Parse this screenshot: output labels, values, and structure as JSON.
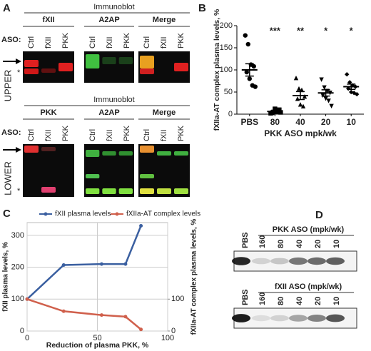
{
  "panel_a": {
    "label": "A",
    "upper": {
      "title": "Immunoblot",
      "headers": [
        "fXII",
        "A2AP",
        "Merge"
      ],
      "aso": "ASO:",
      "lanes": [
        "Ctrl",
        "fXII",
        "PKK"
      ],
      "side": "UPPER",
      "marker": "*"
    },
    "lower": {
      "title": "Immunoblot",
      "headers": [
        "PKK",
        "A2AP",
        "Merge"
      ],
      "aso": "ASO:",
      "lanes": [
        "Ctrl",
        "fXII",
        "PKK"
      ],
      "side": "LOWER",
      "marker": "*"
    }
  },
  "panel_d": {
    "label": "D",
    "blots": [
      {
        "control": "PBS",
        "header": "PKK ASO (mpk/wk)",
        "lanes": [
          "160",
          "80",
          "40",
          "20",
          "10"
        ]
      },
      {
        "control": "PBS",
        "header": "fXII ASO (mpk/wk)",
        "lanes": [
          "160",
          "80",
          "40",
          "20",
          "10"
        ]
      }
    ]
  },
  "chart_data": [
    {
      "type": "dot",
      "panel": "B",
      "ylabel": "fXIIa-AT complex plasma levels, %",
      "xlabel": "PKK ASO mpk/wk",
      "categories": [
        "PBS",
        "80",
        "40",
        "20",
        "10"
      ],
      "values": [
        100,
        6,
        42,
        48,
        62
      ],
      "errors": [
        14,
        2,
        9,
        7,
        6
      ],
      "points": [
        [
          178,
          158,
          112,
          108,
          95,
          80,
          65,
          62
        ],
        [
          2,
          5,
          8,
          10,
          3,
          12,
          6,
          4
        ],
        [
          82,
          58,
          55,
          40,
          35,
          22,
          18
        ],
        [
          78,
          60,
          52,
          48,
          42,
          35,
          30,
          18
        ],
        [
          90,
          72,
          65,
          62,
          58,
          50,
          48,
          45
        ]
      ],
      "markers": [
        "circle",
        "square",
        "triangle-up",
        "triangle-down",
        "diamond"
      ],
      "annotations": [
        null,
        "***",
        "**",
        "*",
        "*"
      ],
      "color": "#000000",
      "ylim": [
        0,
        200
      ],
      "yticks": [
        0,
        50,
        100,
        150,
        200
      ]
    },
    {
      "type": "line",
      "panel": "C",
      "xlabel": "Reduction of plasma PKK, %",
      "ylabel": "fXII plasma levels, %",
      "y2label": "fXIIa-AT complex plasma levels, %",
      "x": [
        0,
        26,
        53,
        70,
        81
      ],
      "xlim": [
        0,
        100
      ],
      "xticks": [
        0,
        50,
        100
      ],
      "ylim": [
        0,
        340
      ],
      "yticks": [
        0,
        100,
        200,
        300
      ],
      "y2lim": [
        0,
        340
      ],
      "y2ticks": [
        0,
        100
      ],
      "grid": true,
      "series": [
        {
          "name": "fXII plasma levels",
          "color": "#3a5fa0",
          "values": [
            100,
            207,
            210,
            210,
            330
          ]
        },
        {
          "name": "fXIIa-AT complex levels",
          "color": "#d0604c",
          "values": [
            100,
            62,
            50,
            45,
            5
          ],
          "axis": "y2"
        }
      ]
    }
  ]
}
